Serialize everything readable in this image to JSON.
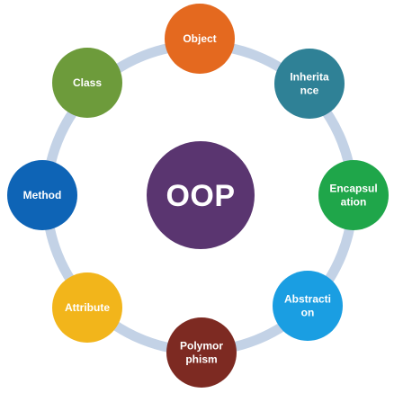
{
  "diagram": {
    "center": {
      "label": "OOP",
      "color": "#5a3570"
    },
    "ring_color": "#c3d2e6",
    "nodes": [
      {
        "id": "object",
        "lines": [
          "Object"
        ],
        "color": "#e4691f"
      },
      {
        "id": "inheritance",
        "lines": [
          "Inherita",
          "nce"
        ],
        "color": "#2f8196"
      },
      {
        "id": "encapsulation",
        "lines": [
          "Encapsul",
          "ation"
        ],
        "color": "#1fa64a"
      },
      {
        "id": "abstraction",
        "lines": [
          "Abstracti",
          "on"
        ],
        "color": "#1a9ee2"
      },
      {
        "id": "polymorphism",
        "lines": [
          "Polymor",
          "phism"
        ],
        "color": "#7d2a22"
      },
      {
        "id": "attribute",
        "lines": [
          "Attribute"
        ],
        "color": "#f2b51b"
      },
      {
        "id": "method",
        "lines": [
          "Method"
        ],
        "color": "#0e64b6"
      },
      {
        "id": "class",
        "lines": [
          "Class"
        ],
        "color": "#6d9b3b"
      }
    ]
  }
}
